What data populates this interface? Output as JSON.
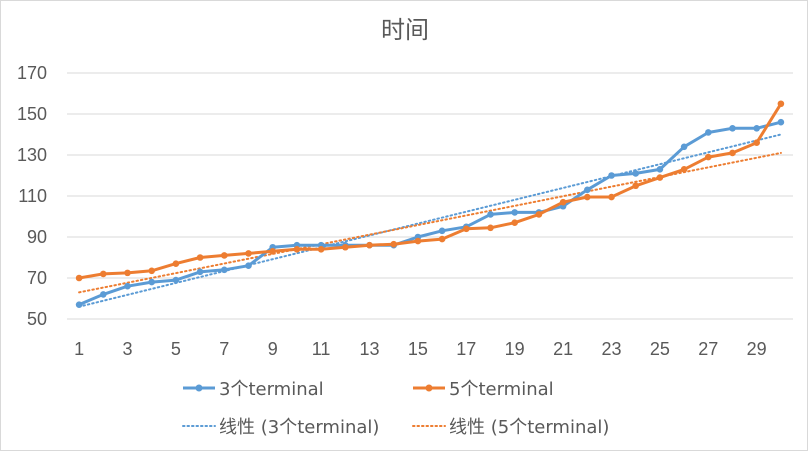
{
  "chart_data": {
    "type": "line",
    "title": "时间",
    "xlabel": "",
    "ylabel": "",
    "x": [
      1,
      2,
      3,
      4,
      5,
      6,
      7,
      8,
      9,
      10,
      11,
      12,
      13,
      14,
      15,
      16,
      17,
      18,
      19,
      20,
      21,
      22,
      23,
      24,
      25,
      26,
      27,
      28,
      29,
      30
    ],
    "x_tick_labels": [
      "1",
      "3",
      "5",
      "7",
      "9",
      "11",
      "13",
      "15",
      "17",
      "19",
      "21",
      "23",
      "25",
      "27",
      "29"
    ],
    "ylim": [
      50,
      170
    ],
    "y_ticks": [
      50,
      70,
      90,
      110,
      130,
      150,
      170
    ],
    "grid": true,
    "legend_position": "bottom",
    "series": [
      {
        "name": "3个terminal",
        "color": "#5b9bd5",
        "values": [
          57,
          62,
          66,
          68,
          69,
          73,
          74,
          76,
          85,
          86,
          86,
          86,
          86,
          86,
          90,
          93,
          95,
          101,
          102,
          102,
          105,
          113,
          120,
          121,
          123,
          134,
          141,
          143,
          143,
          146
        ]
      },
      {
        "name": "5个terminal",
        "color": "#ed7d31",
        "values": [
          70,
          72,
          72.5,
          73.5,
          77,
          80,
          81,
          82,
          83,
          84,
          84,
          85,
          86,
          86.5,
          88,
          89,
          94,
          94.5,
          97,
          101,
          107,
          109.5,
          109.5,
          115,
          119,
          123,
          129,
          131,
          136,
          155
        ]
      }
    ],
    "trendlines": [
      {
        "name": "线性 (3个terminal)",
        "color": "#5b9bd5",
        "type": "linear",
        "start": 56,
        "end": 140
      },
      {
        "name": "线性 (5个terminal)",
        "color": "#ed7d31",
        "type": "linear",
        "start": 63,
        "end": 131
      }
    ]
  }
}
